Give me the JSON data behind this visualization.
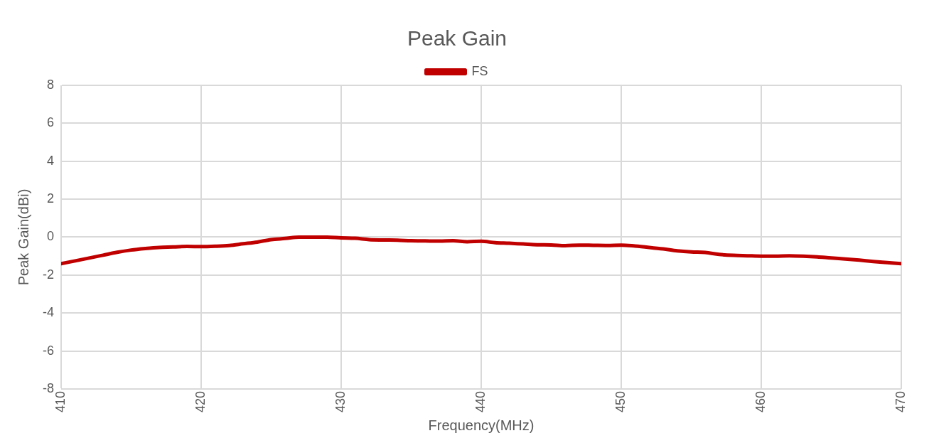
{
  "chart_data": {
    "type": "line",
    "title": "Peak Gain",
    "xlabel": "Frequency(MHz)",
    "ylabel": "Peak Gain(dBi)",
    "x": [
      410,
      411,
      412,
      413,
      414,
      415,
      416,
      417,
      418,
      419,
      420,
      421,
      422,
      423,
      424,
      425,
      426,
      427,
      428,
      429,
      430,
      431,
      432,
      433,
      434,
      435,
      436,
      437,
      438,
      439,
      440,
      441,
      442,
      443,
      444,
      445,
      446,
      447,
      448,
      449,
      450,
      451,
      452,
      453,
      454,
      455,
      456,
      457,
      458,
      459,
      460,
      461,
      462,
      463,
      464,
      465,
      466,
      467,
      468,
      469,
      470
    ],
    "series": [
      {
        "name": "FS",
        "color": "#c00000",
        "values": [
          -1.4,
          -1.25,
          -1.1,
          -0.95,
          -0.8,
          -0.68,
          -0.6,
          -0.54,
          -0.52,
          -0.49,
          -0.5,
          -0.48,
          -0.44,
          -0.35,
          -0.26,
          -0.13,
          -0.07,
          0,
          0,
          0,
          -0.04,
          -0.06,
          -0.13,
          -0.15,
          -0.16,
          -0.19,
          -0.2,
          -0.21,
          -0.19,
          -0.24,
          -0.22,
          -0.29,
          -0.32,
          -0.36,
          -0.4,
          -0.41,
          -0.45,
          -0.42,
          -0.43,
          -0.44,
          -0.42,
          -0.47,
          -0.54,
          -0.62,
          -0.72,
          -0.78,
          -0.81,
          -0.91,
          -0.96,
          -0.98,
          -1,
          -1,
          -0.98,
          -1,
          -1.04,
          -1.1,
          -1.15,
          -1.21,
          -1.28,
          -1.34,
          -1.4
        ]
      }
    ],
    "xlim": [
      410,
      470
    ],
    "xticks": [
      410,
      420,
      430,
      440,
      450,
      460,
      470
    ],
    "ylim": [
      -8,
      8
    ],
    "yticks": [
      -8,
      -6,
      -4,
      -2,
      0,
      2,
      4,
      6,
      8
    ],
    "grid": true,
    "legend": "top",
    "marker": "none",
    "line_style": "solid"
  }
}
